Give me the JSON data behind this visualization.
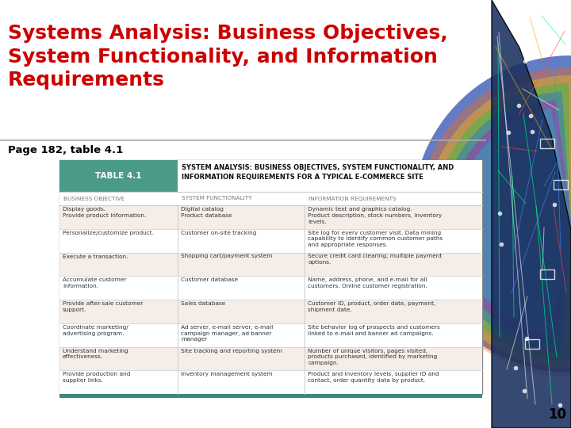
{
  "title": "Systems Analysis: Business Objectives,\nSystem Functionality, and Information\nRequirements",
  "title_color": "#cc0000",
  "subtitle": "Page 182, table 4.1",
  "subtitle_color": "#000000",
  "bg_color": "#ffffff",
  "table_label": "TABLE 4.1",
  "table_label_bg": "#4a9a8a",
  "table_label_color": "#ffffff",
  "table_header_text": "SYSTEM ANALYSIS: BUSINESS OBJECTIVES, SYSTEM FUNCTIONALITY, AND\nINFORMATION REQUIREMENTS FOR A TYPICAL E-COMMERCE SITE",
  "col_headers": [
    "BUSINESS OBJECTIVE",
    "SYSTEM FUNCTIONALITY",
    "INFORMATION REQUIREMENTS"
  ],
  "col_header_color": "#888888",
  "row_bg_odd": "#f5ede8",
  "row_bg_even": "#ffffff",
  "border_color": "#aaaaaa",
  "teal_bar_color": "#3a8a7a",
  "page_number": "10",
  "rows": [
    [
      "Display goods.\nProvide product information.",
      "Digital catalog\nProduct database",
      "Dynamic text and graphics catalog.\nProduct description, stock numbers, inventory\nlevels."
    ],
    [
      "Personalize/customize product.",
      "Customer on-site tracking",
      "Site log for every customer visit. Data mining\ncapability to identify common customer paths\nand appropriate responses."
    ],
    [
      "Execute a transaction.",
      "Shopping cart/payment system",
      "Secure credit card clearing; multiple payment\noptions."
    ],
    [
      "Accumulate customer\ninformation.",
      "Customer database",
      "Name, address, phone, and e-mail for all\ncustomers. Online customer registration."
    ],
    [
      "Provide after-sale customer\nsupport.",
      "Sales database",
      "Customer ID, product, order date, payment,\nshipment date."
    ],
    [
      "Coordinate marketing/\nadvertising program.",
      "Ad server, e-mail server, e-mail\ncampaign manager, ad banner\nmanager",
      "Site behavior log of prospects and customers\nlinked to e-mail and banner ad campaigns."
    ],
    [
      "Understand marketing\neffectiveness.",
      "Site tracking and reporting system",
      "Number of unique visitors, pages visited,\nproducts purchased, identified by marketing\ncampaign."
    ],
    [
      "Provide production and\nsupplier links.",
      "Inventory management system",
      "Product and inventory levels, supplier ID and\ncontact, order quantity data by product."
    ]
  ]
}
